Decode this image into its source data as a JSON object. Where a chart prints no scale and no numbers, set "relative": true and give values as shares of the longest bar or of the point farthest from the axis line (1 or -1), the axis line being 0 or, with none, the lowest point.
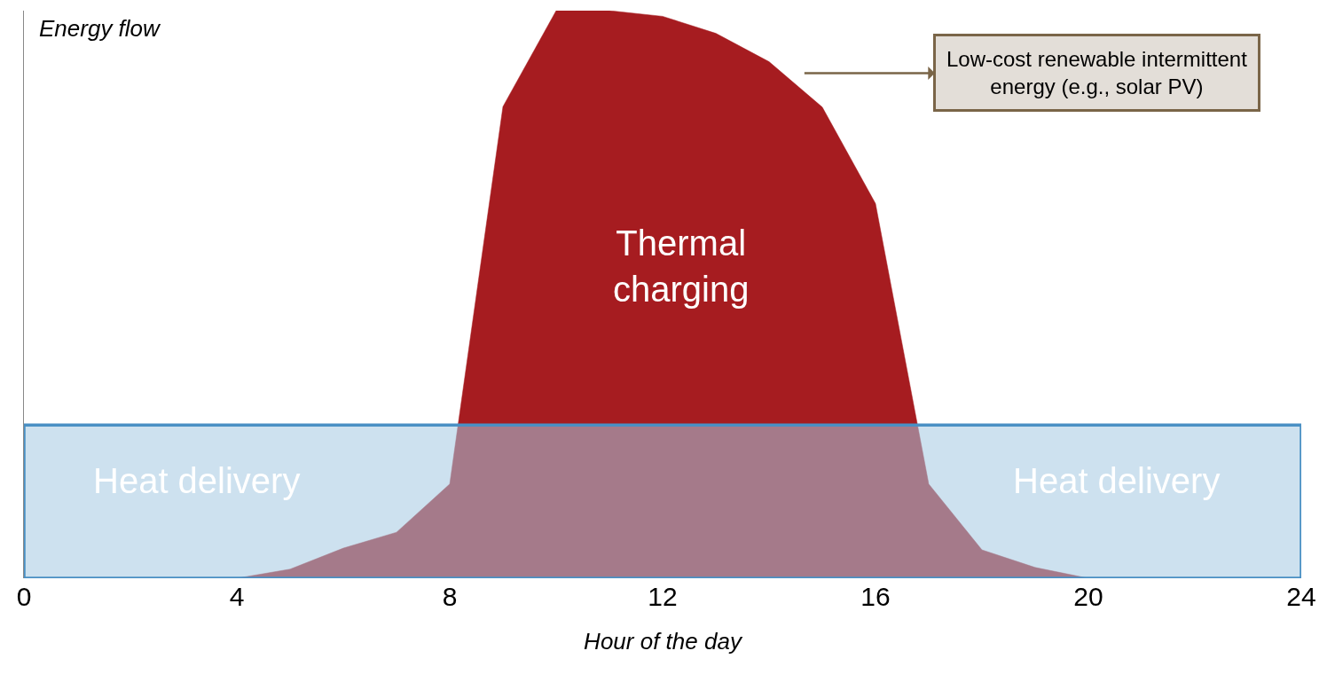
{
  "chart_data": {
    "type": "area",
    "relative": true,
    "ylabel": "Energy flow",
    "xlabel": "Hour of the day",
    "xlim": [
      0,
      24
    ],
    "xticks": [
      0,
      4,
      8,
      12,
      16,
      20,
      24
    ],
    "legend": false,
    "series": [
      {
        "name": "Thermal charging",
        "color": "#a61c20",
        "x": [
          0,
          1,
          2,
          3,
          4,
          5,
          6,
          7,
          8,
          9,
          10,
          11,
          12,
          13,
          14,
          15,
          16,
          17,
          18,
          19,
          20,
          21,
          22,
          23,
          24
        ],
        "values": [
          0,
          0,
          0,
          0,
          0,
          0.016,
          0.053,
          0.081,
          0.166,
          0.831,
          1,
          1,
          0.99,
          0.96,
          0.91,
          0.83,
          0.66,
          0.166,
          0.05,
          0.019,
          0,
          0,
          0,
          0,
          0
        ]
      },
      {
        "name": "Heat delivery",
        "color": "#a4c8e1",
        "x": [
          0,
          24
        ],
        "values": [
          0.27,
          0.27
        ]
      }
    ],
    "annotations": [
      "Low-cost renewable intermittent energy (e.g., solar PV)"
    ]
  }
}
